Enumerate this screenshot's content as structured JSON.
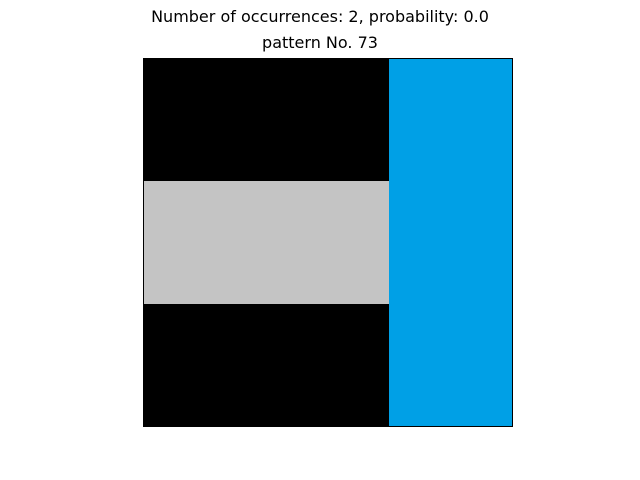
{
  "title": {
    "line1": "Number of occurrences: 2, probability: 0.0",
    "line2": "pattern No. 73"
  },
  "pattern": {
    "columns": 3,
    "rows": 3,
    "cells": [
      [
        "#000000",
        "#000000",
        "#00a0e6"
      ],
      [
        "#c4c4c4",
        "#c4c4c4",
        "#00a0e6"
      ],
      [
        "#000000",
        "#000000",
        "#00a0e6"
      ]
    ]
  }
}
